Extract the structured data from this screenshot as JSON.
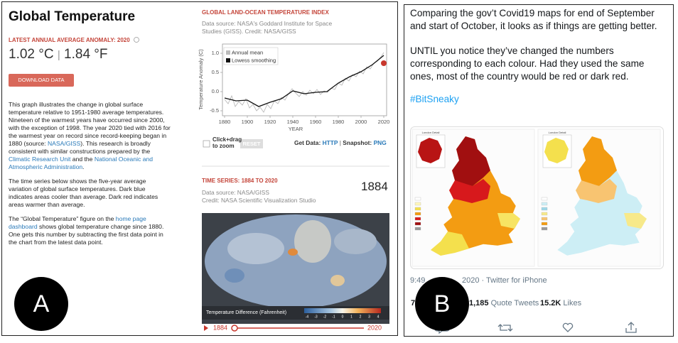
{
  "panel_a": {
    "badge": "A",
    "title": "Global Temperature",
    "anomaly_label": "LATEST ANNUAL AVERAGE ANOMALY: 2020",
    "anomaly_celsius": "1.02 °C",
    "anomaly_separator": "|",
    "anomaly_fahrenheit": "1.84 °F",
    "download_button": "DOWNLOAD DATA",
    "paragraphs": [
      [
        {
          "text": "This graph illustrates the change in global surface temperature relative to 1951-1980 average temperatures. Nineteen of the warmest years have occurred since 2000, with the exception of 1998. The year 2020 tied with 2016 for the warmest year on record since record-keeping began in 1880 (source: "
        },
        {
          "text": "NASA/GISS",
          "link": true
        },
        {
          "text": "). This research is broadly consistent with similar constructions prepared by the "
        },
        {
          "text": "Climatic Research Unit",
          "link": true
        },
        {
          "text": " and the "
        },
        {
          "text": "National Oceanic and Atmospheric Administration",
          "link": true
        },
        {
          "text": "."
        }
      ],
      [
        {
          "text": "The time series below shows the five-year average variation of global surface temperatures. Dark blue indicates areas cooler than average. Dark red indicates areas warmer than average."
        }
      ],
      [
        {
          "text": "The “Global Temperature” figure on the "
        },
        {
          "text": "home page dashboard",
          "link": true
        },
        {
          "text": " shows global temperature change since 1880. One gets this number by subtracting the first data point in the chart from the latest data point."
        }
      ]
    ],
    "index_chart": {
      "title": "GLOBAL LAND-OCEAN TEMPERATURE INDEX",
      "source": "Data source: NASA's Goddard Institute for Space Studies (GISS). Credit: NASA/GISS",
      "y_label": "Temperature Anomaly (C)",
      "x_label": "YEAR",
      "y_ticks": [
        "1.0",
        "0.5",
        "0.0",
        "-0.5"
      ],
      "x_ticks": [
        "1880",
        "1900",
        "1920",
        "1940",
        "1960",
        "1980",
        "2000",
        "2020"
      ],
      "legend": [
        "Annual mean",
        "Lowess smoothing"
      ],
      "zoom_hint": "Click+drag to zoom",
      "reset_button": "RESET",
      "get_data_label": "Get Data:",
      "http_link": "HTTP",
      "divider": "|",
      "snapshot_label": "Snapshot:",
      "png_link": "PNG"
    },
    "time_series": {
      "title": "TIME SERIES: 1884 TO 2020",
      "source": "Data source: NASA/GISS",
      "credit": "Credit: NASA Scientific Visualization Studio",
      "current_year": "1884",
      "colorbar_title": "Temperature Difference (Fahrenheit)",
      "colorbar_ticks": [
        "-4",
        "-3",
        "-2",
        "-1",
        "0",
        "1",
        "2",
        "3",
        "4"
      ],
      "slider_start": "1884",
      "slider_end": "2020"
    }
  },
  "panel_b": {
    "badge": "B",
    "paragraphs": [
      "Comparing the gov’t Covid19 maps for end of September and start of October, it looks as if things are getting better.",
      "UNTIL you notice they’ve changed the numbers corresponding to each colour. Had they used the same ones, most of the country would be red or dark red."
    ],
    "hashtag": "#BitSneaky",
    "map_labels": [
      "London Detail",
      "London Detail"
    ],
    "time": "9:49",
    "date_source": "2020 · Twitter for iPhone",
    "retweet_count": "7",
    "quote_count": "1,185",
    "quote_label": "Quote Tweets",
    "like_count": "15.2K",
    "like_label": "Likes"
  }
}
